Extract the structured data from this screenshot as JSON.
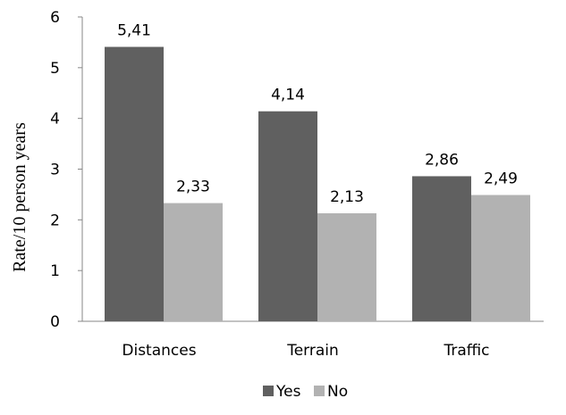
{
  "chart_data": {
    "type": "bar",
    "categories": [
      "Distances",
      "Terrain",
      "Traffic"
    ],
    "series": [
      {
        "name": "Yes",
        "values": [
          5.41,
          4.14,
          2.86
        ],
        "labels": [
          "5,41",
          "4,14",
          "2,86"
        ],
        "color": "#606060"
      },
      {
        "name": "No",
        "values": [
          2.33,
          2.13,
          2.49
        ],
        "labels": [
          "2,33",
          "2,13",
          "2,49"
        ],
        "color": "#b2b2b2"
      }
    ],
    "title": "",
    "xlabel": "",
    "ylabel": "Rate/10 person years",
    "ylim": [
      0,
      6
    ],
    "yticks": [
      0,
      1,
      2,
      3,
      4,
      5,
      6
    ],
    "ytick_labels": [
      "0",
      "1",
      "2",
      "3",
      "4",
      "5",
      "6"
    ],
    "grid": false,
    "legend_position": "bottom"
  }
}
